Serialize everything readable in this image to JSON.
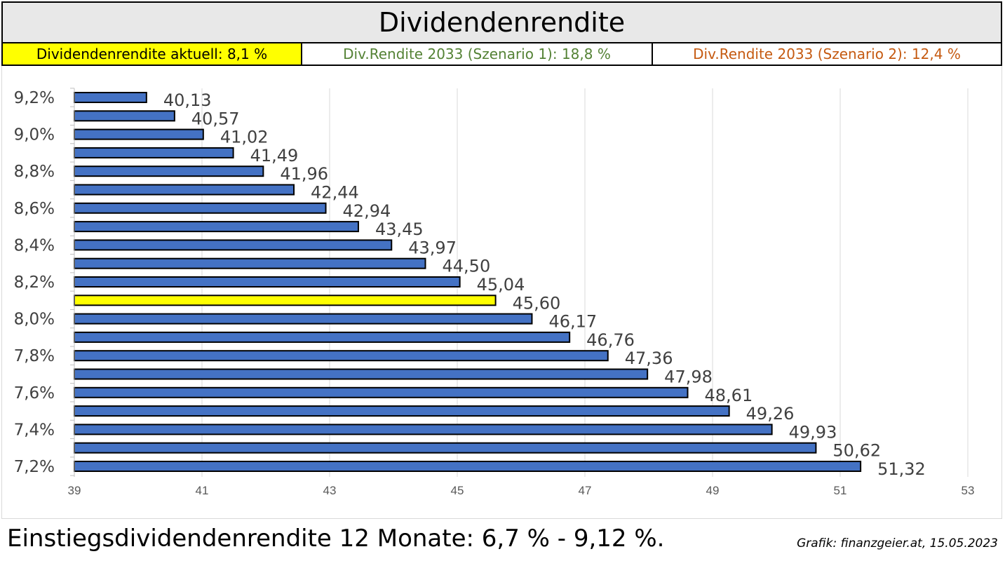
{
  "header": {
    "title": "Dividendenrendite",
    "current_label": "Dividendenrendite aktuell: 8,1 %",
    "scenario1_label": "Div.Rendite 2033 (Szenario 1): 18,8 %",
    "scenario2_label": "Div.Rendite 2033 (Szenario 2): 12,4 %"
  },
  "footer": {
    "note": "Einstiegsdividendenrendite 12 Monate: 6,7 % - 9,12 %.",
    "credit": "Grafik: finanzgeier.at, 15.05.2023"
  },
  "colors": {
    "bar": "#4472c4",
    "highlight_bar": "#ffff00",
    "scenario1": "#548235",
    "scenario2": "#c55a11"
  },
  "chart_data": {
    "type": "bar",
    "orientation": "horizontal",
    "categories": [
      "9,2%",
      "",
      "9,0%",
      "",
      "8,8%",
      "",
      "8,6%",
      "",
      "8,4%",
      "",
      "8,2%",
      "",
      "8,0%",
      "",
      "7,8%",
      "",
      "7,6%",
      "",
      "7,4%",
      "",
      "7,2%"
    ],
    "values": [
      40.13,
      40.57,
      41.02,
      41.49,
      41.96,
      42.44,
      42.94,
      43.45,
      43.97,
      44.5,
      45.04,
      45.6,
      46.17,
      46.76,
      47.36,
      47.98,
      48.61,
      49.26,
      49.93,
      50.62,
      51.32
    ],
    "value_labels": [
      "40,13",
      "40,57",
      "41,02",
      "41,49",
      "41,96",
      "42,44",
      "42,94",
      "43,45",
      "43,97",
      "44,50",
      "45,04",
      "45,60",
      "46,17",
      "46,76",
      "47,36",
      "47,98",
      "48,61",
      "49,26",
      "49,93",
      "50,62",
      "51,32"
    ],
    "highlight_index": 11,
    "xlim": [
      39,
      53
    ],
    "xticks": [
      39,
      41,
      43,
      45,
      47,
      49,
      51,
      53
    ],
    "grid": "vertical",
    "legend": "none"
  }
}
